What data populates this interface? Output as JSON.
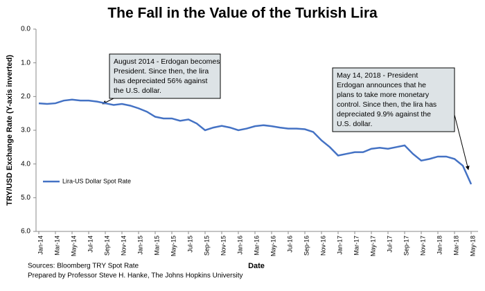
{
  "chart_data": {
    "type": "line",
    "title": "The Fall in the Value of the Turkish Lira",
    "y_label": "TRY/USD Exchange Rate (Y-axis inverted)",
    "x_label": "Date",
    "y_inverted": true,
    "x": [
      "Jan-14",
      "Feb-14",
      "Mar-14",
      "Apr-14",
      "May-14",
      "Jun-14",
      "Jul-14",
      "Aug-14",
      "Sep-14",
      "Oct-14",
      "Nov-14",
      "Dec-14",
      "Jan-15",
      "Feb-15",
      "Mar-15",
      "Apr-15",
      "May-15",
      "Jun-15",
      "Jul-15",
      "Aug-15",
      "Sep-15",
      "Oct-15",
      "Nov-15",
      "Dec-15",
      "Jan-16",
      "Feb-16",
      "Mar-16",
      "Apr-16",
      "May-16",
      "Jun-16",
      "Jul-16",
      "Aug-16",
      "Sep-16",
      "Oct-16",
      "Nov-16",
      "Dec-16",
      "Jan-17",
      "Feb-17",
      "Mar-17",
      "Apr-17",
      "May-17",
      "Jun-17",
      "Jul-17",
      "Aug-17",
      "Sep-17",
      "Oct-17",
      "Nov-17",
      "Dec-17",
      "Jan-18",
      "Feb-18",
      "Mar-18",
      "Apr-18",
      "May-18"
    ],
    "xticks": [
      "Jan-14",
      "Mar-14",
      "May-14",
      "Jul-14",
      "Sep-14",
      "Nov-14",
      "Jan-15",
      "Mar-15",
      "May-15",
      "Jul-15",
      "Sep-15",
      "Nov-15",
      "Jan-16",
      "Mar-16",
      "May-16",
      "Jul-16",
      "Sep-16",
      "Nov-16",
      "Jan-17",
      "Mar-17",
      "May-17",
      "Jul-17",
      "Sep-17",
      "Nov-17",
      "Jan-18",
      "Mar-18",
      "May-18"
    ],
    "series": [
      {
        "name": "Lira-US Dollar Spot Rate",
        "color": "#4472c4",
        "values": [
          2.2,
          2.22,
          2.2,
          2.12,
          2.09,
          2.12,
          2.12,
          2.15,
          2.2,
          2.25,
          2.22,
          2.27,
          2.35,
          2.45,
          2.6,
          2.65,
          2.65,
          2.72,
          2.68,
          2.8,
          3.0,
          2.92,
          2.87,
          2.92,
          3.0,
          2.95,
          2.88,
          2.85,
          2.88,
          2.92,
          2.95,
          2.95,
          2.97,
          3.05,
          3.3,
          3.5,
          3.75,
          3.7,
          3.65,
          3.65,
          3.55,
          3.52,
          3.55,
          3.5,
          3.45,
          3.7,
          3.9,
          3.85,
          3.78,
          3.78,
          3.85,
          4.05,
          4.6
        ]
      }
    ],
    "ylim": [
      0,
      6
    ],
    "yticks": [
      {
        "value": 0,
        "label": "0.0"
      },
      {
        "value": 1,
        "label": "1.0"
      },
      {
        "value": 2,
        "label": "2.0"
      },
      {
        "value": 3,
        "label": "3.0"
      },
      {
        "value": 4,
        "label": "4.0"
      },
      {
        "value": 5,
        "label": "5.0"
      },
      {
        "value": 6,
        "label": "6.0"
      }
    ],
    "legend": "left",
    "annotations": [
      {
        "lines": [
          "August 2014 - Erdogan becomes",
          "President.  Since then, the lira",
          "has depreciated 56% against",
          "the U.S. dollar."
        ]
      },
      {
        "lines": [
          "May 14, 2018 - President",
          "Erdogan announces that he",
          "plans to take more monetary",
          "control. Since then, the lira has",
          "depreciated 9.9% against the",
          "U.S. dollar."
        ]
      }
    ],
    "notes": [
      "Sources: Bloomberg TRY Spot Rate",
      "Prepared by Professor Steve H. Hanke, The Johns Hopkins University"
    ]
  }
}
